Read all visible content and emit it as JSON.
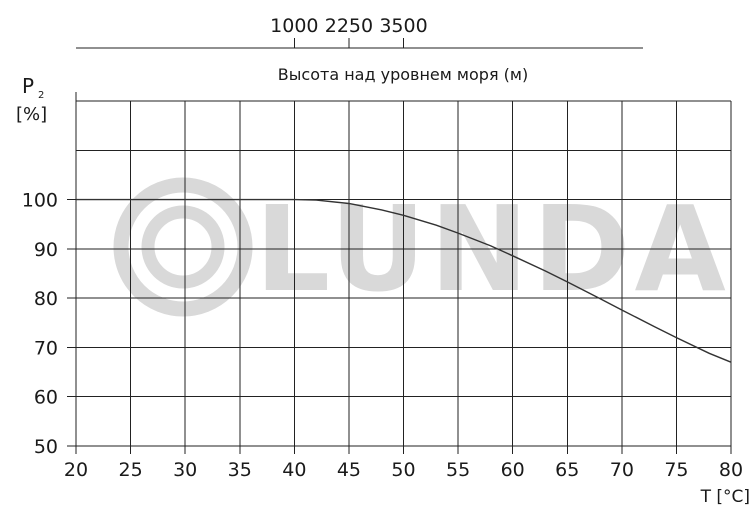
{
  "chart_data": {
    "type": "line",
    "x": [
      20,
      25,
      30,
      35,
      40,
      42,
      45,
      48,
      50,
      53,
      55,
      58,
      60,
      63,
      65,
      68,
      70,
      73,
      75,
      78,
      80
    ],
    "series": [
      {
        "values": [
          100,
          100,
          100,
          100,
          100,
          99.9,
          99.2,
          97.9,
          96.8,
          94.8,
          93.2,
          90.6,
          88.6,
          85.5,
          83.3,
          79.9,
          77.6,
          74.2,
          72.0,
          68.8,
          67.0
        ]
      }
    ],
    "xlabel": "T [°C]",
    "ylabel_main": "P",
    "ylabel_sub": "2",
    "ylabel_unit": "[%]",
    "xlim": [
      20,
      80
    ],
    "ylim": [
      50,
      120
    ],
    "xticks": [
      "20",
      "25",
      "30",
      "35",
      "40",
      "45",
      "50",
      "55",
      "60",
      "65",
      "70",
      "75",
      "80"
    ],
    "yticks": [
      "50",
      "60",
      "70",
      "80",
      "90",
      "100"
    ],
    "secondary_axis": {
      "label": "Высота над уровнем моря (м)",
      "ticks": [
        "1000",
        "2250",
        "3500"
      ],
      "tick_positions_on_x": [
        40,
        45,
        50
      ]
    },
    "grid": true,
    "watermark": "LUNDA"
  },
  "colors": {
    "grid": "#222222",
    "curve": "#333333",
    "watermark": "#d9d9d9",
    "text": "#1a1a1a"
  }
}
